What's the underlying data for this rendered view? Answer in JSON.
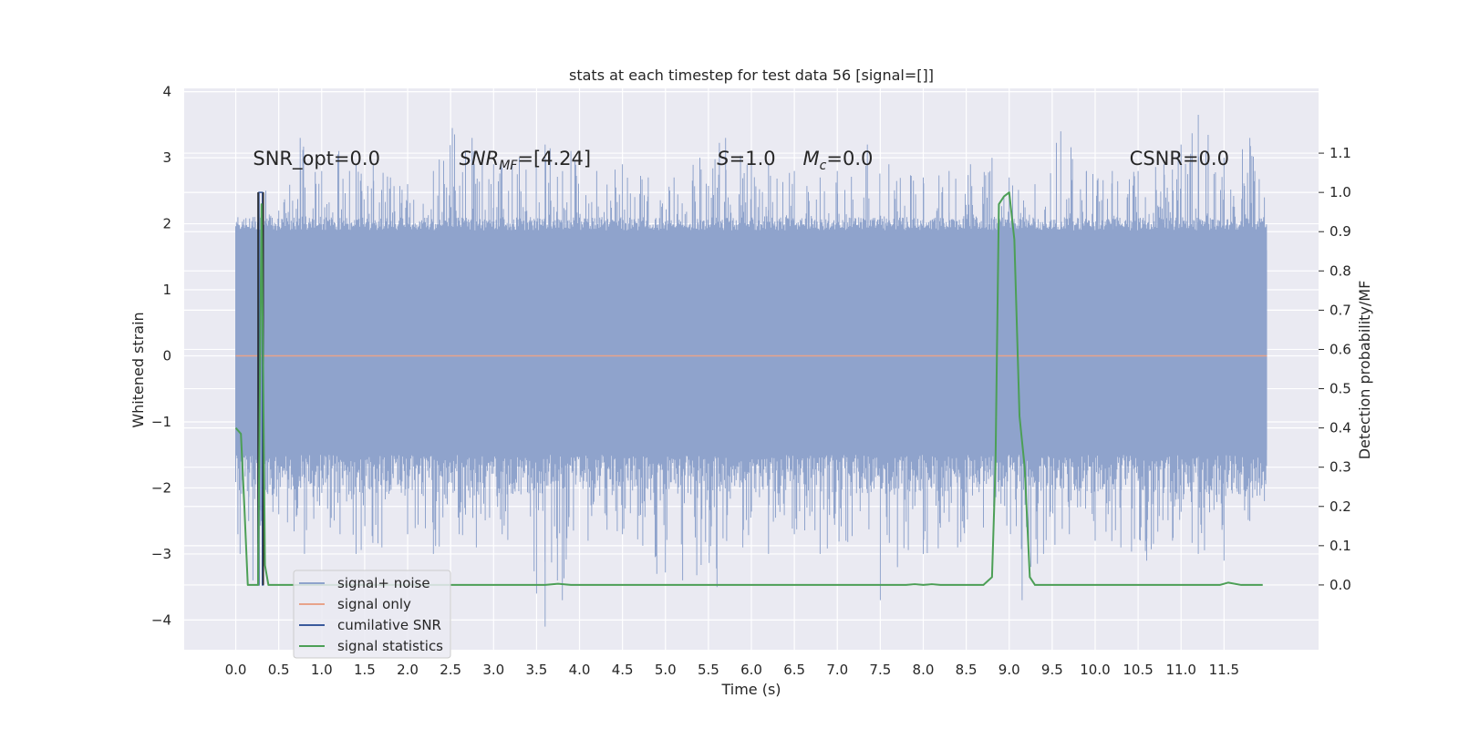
{
  "chart_data": {
    "type": "line",
    "title": "stats at each timestep for test data 56 [signal=[]]",
    "xlabel": "Time (s)",
    "ylabel": "Whitened strain",
    "y2label": "Detection probability/MF",
    "xlim": [
      -0.6,
      12.6
    ],
    "ylim": [
      -4.45,
      4.05
    ],
    "y2lim": [
      -0.165,
      1.265
    ],
    "xticks": [
      0.0,
      0.5,
      1.0,
      1.5,
      2.0,
      2.5,
      3.0,
      3.5,
      4.0,
      4.5,
      5.0,
      5.5,
      6.0,
      6.5,
      7.0,
      7.5,
      8.0,
      8.5,
      9.0,
      9.5,
      10.0,
      10.5,
      11.0,
      11.5
    ],
    "xtick_labels": [
      "0.0",
      "0.5",
      "1.0",
      "1.5",
      "2.0",
      "2.5",
      "3.0",
      "3.5",
      "4.0",
      "4.5",
      "5.0",
      "5.5",
      "6.0",
      "6.5",
      "7.0",
      "7.5",
      "8.0",
      "8.5",
      "9.0",
      "9.5",
      "10.0",
      "10.5",
      "11.0",
      "11.5"
    ],
    "yticks": [
      4,
      3,
      2,
      1,
      0,
      -1,
      -2,
      -3,
      -4
    ],
    "ytick_labels": [
      "4",
      "3",
      "2",
      "1",
      "0",
      "−1",
      "−2",
      "−3",
      "−4"
    ],
    "y2ticks": [
      1.1,
      1.0,
      0.9,
      0.8,
      0.7,
      0.6,
      0.5,
      0.4,
      0.3,
      0.2,
      0.1,
      0.0
    ],
    "y2tick_labels": [
      "1.1",
      "1.0",
      "0.9",
      "0.8",
      "0.7",
      "0.6",
      "0.5",
      "0.4",
      "0.3",
      "0.2",
      "0.1",
      "0.0"
    ],
    "grid": true,
    "legend_placement": "lower-left",
    "series": [
      {
        "name": "signal+ noise",
        "color": "#8fa3cc",
        "axis": "left",
        "x_range": [
          0.0,
          12.0
        ],
        "typical_band": [
          -1.5,
          2.0
        ],
        "spike_max": [
          [
            0.02,
            2.0
          ],
          [
            0.2,
            2.1
          ],
          [
            0.35,
            2.5
          ],
          [
            0.5,
            2.2
          ],
          [
            0.75,
            3.3
          ],
          [
            1.0,
            2.8
          ],
          [
            1.2,
            3.1
          ],
          [
            1.4,
            2.9
          ],
          [
            1.6,
            2.9
          ],
          [
            1.8,
            2.7
          ],
          [
            2.0,
            2.6
          ],
          [
            2.3,
            2.8
          ],
          [
            2.52,
            3.45
          ],
          [
            2.75,
            3.3
          ],
          [
            3.0,
            2.9
          ],
          [
            3.3,
            3.0
          ],
          [
            3.6,
            3.2
          ],
          [
            3.9,
            3.1
          ],
          [
            4.2,
            2.8
          ],
          [
            4.5,
            2.9
          ],
          [
            4.8,
            2.7
          ],
          [
            5.1,
            2.7
          ],
          [
            5.4,
            3.0
          ],
          [
            5.7,
            3.3
          ],
          [
            6.0,
            3.0
          ],
          [
            6.2,
            2.9
          ],
          [
            6.5,
            2.8
          ],
          [
            6.8,
            2.7
          ],
          [
            7.0,
            2.8
          ],
          [
            7.35,
            3.2
          ],
          [
            7.6,
            2.9
          ],
          [
            8.0,
            2.7
          ],
          [
            8.3,
            2.8
          ],
          [
            8.55,
            2.9
          ],
          [
            8.8,
            3.0
          ],
          [
            9.0,
            2.7
          ],
          [
            9.3,
            2.6
          ],
          [
            9.6,
            3.4
          ],
          [
            9.9,
            2.8
          ],
          [
            10.2,
            2.8
          ],
          [
            10.5,
            2.8
          ],
          [
            10.8,
            2.9
          ],
          [
            11.0,
            3.2
          ],
          [
            11.2,
            3.65
          ],
          [
            11.5,
            3.0
          ],
          [
            11.8,
            3.3
          ],
          [
            11.97,
            2.4
          ]
        ],
        "spike_min": [
          [
            0.05,
            -3.0
          ],
          [
            0.15,
            -2.5
          ],
          [
            0.2,
            -3.4
          ],
          [
            0.3,
            -2.5
          ],
          [
            0.5,
            -2.4
          ],
          [
            0.8,
            -3.0
          ],
          [
            1.1,
            -2.6
          ],
          [
            1.4,
            -3.0
          ],
          [
            1.7,
            -2.9
          ],
          [
            2.0,
            -2.7
          ],
          [
            2.3,
            -3.0
          ],
          [
            2.6,
            -2.7
          ],
          [
            2.8,
            -2.9
          ],
          [
            3.1,
            -2.7
          ],
          [
            3.5,
            -3.6
          ],
          [
            3.6,
            -4.1
          ],
          [
            3.8,
            -3.7
          ],
          [
            4.1,
            -2.8
          ],
          [
            4.5,
            -2.7
          ],
          [
            4.9,
            -3.3
          ],
          [
            5.2,
            -3.4
          ],
          [
            5.6,
            -3.5
          ],
          [
            5.9,
            -2.9
          ],
          [
            6.2,
            -3.0
          ],
          [
            6.5,
            -2.7
          ],
          [
            6.8,
            -3.0
          ],
          [
            7.1,
            -2.8
          ],
          [
            7.5,
            -3.7
          ],
          [
            7.7,
            -3.2
          ],
          [
            8.0,
            -3.0
          ],
          [
            8.4,
            -2.9
          ],
          [
            8.7,
            -2.6
          ],
          [
            9.15,
            -3.7
          ],
          [
            9.4,
            -3.0
          ],
          [
            9.7,
            -2.7
          ],
          [
            10.0,
            -2.8
          ],
          [
            10.3,
            -2.9
          ],
          [
            10.6,
            -3.1
          ],
          [
            10.9,
            -2.8
          ],
          [
            11.2,
            -3.0
          ],
          [
            11.5,
            -3.1
          ],
          [
            11.8,
            -2.5
          ],
          [
            11.97,
            -2.2
          ]
        ]
      },
      {
        "name": "signal only",
        "color": "#e8a38a",
        "axis": "left",
        "x": [
          0.0,
          12.0
        ],
        "y": [
          0.0,
          0.0
        ]
      },
      {
        "name": "cumilative SNR",
        "color": "#3a5a9c",
        "axis": "right",
        "x": [
          0.26,
          0.26,
          0.27,
          0.27,
          0.31,
          0.31,
          0.32,
          0.32
        ],
        "y": [
          1.0,
          0.0,
          0.0,
          1.0,
          1.0,
          0.0,
          0.0,
          1.0
        ]
      },
      {
        "name": "signal statistics",
        "color": "#4c9f56",
        "axis": "right",
        "x": [
          0.0,
          0.06,
          0.1,
          0.14,
          0.18,
          0.22,
          0.26,
          0.3,
          0.34,
          0.38,
          0.45,
          1.0,
          2.0,
          3.0,
          3.6,
          3.75,
          3.9,
          5.0,
          6.0,
          7.0,
          7.8,
          7.9,
          8.0,
          8.1,
          8.2,
          8.7,
          8.8,
          8.84,
          8.88,
          8.94,
          9.0,
          9.06,
          9.12,
          9.18,
          9.24,
          9.3,
          10.0,
          11.0,
          11.45,
          11.55,
          11.7,
          11.95
        ],
        "y": [
          0.4,
          0.385,
          0.2,
          0.0,
          0.0,
          0.0,
          0.0,
          0.97,
          0.05,
          0.0,
          0.0,
          0.0,
          0.0,
          0.0,
          0.0,
          0.003,
          0.0,
          0.0,
          0.0,
          0.0,
          0.0,
          0.002,
          0.0,
          0.002,
          0.0,
          0.0,
          0.02,
          0.3,
          0.97,
          0.99,
          1.0,
          0.88,
          0.43,
          0.3,
          0.02,
          0.0,
          0.0,
          0.0,
          0.0,
          0.006,
          0.0,
          0.0
        ]
      }
    ],
    "annotations": [
      {
        "text": "SNR_opt=0.0",
        "x": 0.2,
        "y": 3.0
      },
      {
        "text": "SNR_MF=[4.24]",
        "x": 2.6,
        "y": 3.0
      },
      {
        "text": "S=1.0",
        "x": 5.6,
        "y": 3.0
      },
      {
        "text": "M_c=0.0",
        "x": 6.6,
        "y": 3.0
      },
      {
        "text": "CSNR=0.0",
        "x": 10.4,
        "y": 3.0
      }
    ]
  }
}
